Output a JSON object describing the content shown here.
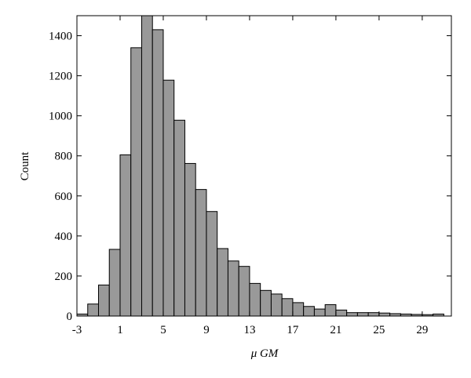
{
  "chart_data": {
    "type": "histogram",
    "x_label": "μ GM",
    "y_label": "Count",
    "bins": [
      -3,
      -2,
      -1,
      0,
      1,
      2,
      3,
      4,
      5,
      6,
      7,
      8,
      9,
      10,
      11,
      12,
      13,
      14,
      15,
      16,
      17,
      18,
      19,
      20,
      21,
      22,
      23,
      24,
      25,
      26,
      27,
      28,
      29,
      30,
      31
    ],
    "values": [
      10,
      60,
      155,
      333,
      805,
      1340,
      1510,
      1430,
      1178,
      978,
      762,
      632,
      522,
      337,
      275,
      248,
      163,
      128,
      110,
      87,
      67,
      48,
      35,
      57,
      30,
      17,
      17,
      17,
      15,
      12,
      10,
      8,
      7,
      10
    ],
    "color": "#999999",
    "xlim": [
      -3,
      31.7
    ],
    "xticks": [
      -3,
      1,
      5,
      9,
      13,
      17,
      21,
      25,
      29
    ],
    "ylim": [
      0,
      1500
    ],
    "yticks": [
      0,
      200,
      400,
      600,
      800,
      1000,
      1200,
      1400
    ]
  }
}
